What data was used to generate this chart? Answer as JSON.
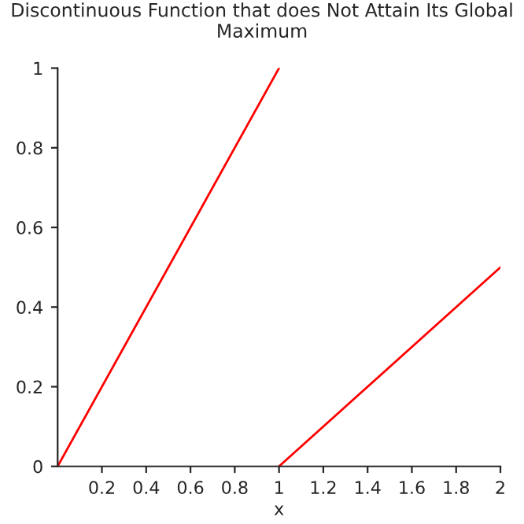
{
  "chart_data": {
    "type": "line",
    "title": "Discontinuous Function that does Not Attain Its Global Maximum",
    "xlabel": "x",
    "series": [
      {
        "color": "#ff0000",
        "x": [
          0,
          1
        ],
        "values": [
          0,
          1
        ]
      },
      {
        "color": "#ff0000",
        "x": [
          1,
          2
        ],
        "values": [
          0,
          0.5
        ]
      }
    ],
    "xlim": [
      0,
      2
    ],
    "xticks": [
      0.2,
      0.4,
      0.6,
      0.8,
      1,
      1.2,
      1.4,
      1.6,
      1.8,
      2
    ],
    "ylim": [
      0,
      1
    ],
    "yticks": [
      0,
      0.2,
      0.4,
      0.6,
      0.8,
      1
    ],
    "grid": false,
    "legend": false,
    "line_style": "solid",
    "marker": "none"
  }
}
